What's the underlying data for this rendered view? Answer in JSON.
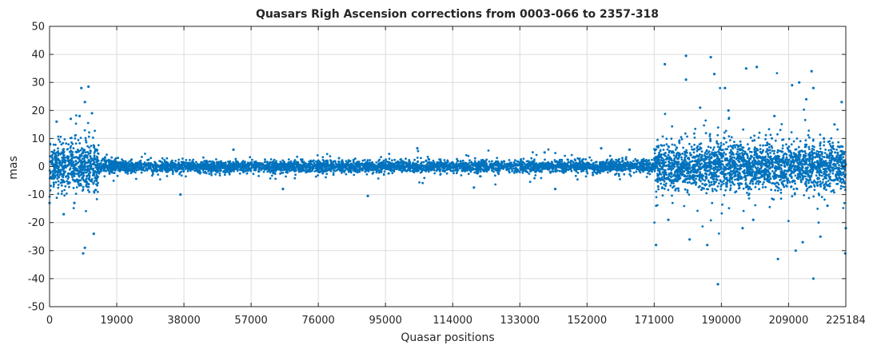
{
  "chart_data": {
    "type": "scatter",
    "title": "Quasars Righ Ascension corrections from 0003-066 to 2357-318",
    "xlabel": "Quasar positions",
    "ylabel": "mas",
    "xlim": [
      0,
      225184
    ],
    "ylim": [
      -50,
      50
    ],
    "grid": true,
    "legend": "none",
    "marker_color": "#0072BD",
    "x_ticks": [
      0,
      19000,
      38000,
      57000,
      76000,
      95000,
      114000,
      133000,
      152000,
      171000,
      190000,
      209000,
      225184
    ],
    "y_ticks": [
      50,
      40,
      30,
      20,
      10,
      0,
      -10,
      -20,
      -30,
      -40,
      -50
    ],
    "series": [
      {
        "density_segments": [
          {
            "x_range": [
              0,
              14000
            ],
            "y_spread": 4.0,
            "y_min": -31,
            "y_max": 29
          },
          {
            "x_range": [
              14000,
              171000
            ],
            "y_spread": 1.0,
            "y_min": -11,
            "y_max": 7
          },
          {
            "x_range": [
              171000,
              225184
            ],
            "y_spread": 4.0,
            "y_min": -42,
            "y_max": 40
          }
        ],
        "outliers": [
          [
            9000,
            28
          ],
          [
            11000,
            28.5
          ],
          [
            10000,
            23
          ],
          [
            8500,
            18
          ],
          [
            12000,
            19
          ],
          [
            2000,
            16
          ],
          [
            6000,
            17
          ],
          [
            10000,
            -29
          ],
          [
            9500,
            -31
          ],
          [
            12500,
            -24
          ],
          [
            0,
            -13
          ],
          [
            4000,
            -17
          ],
          [
            7000,
            -13
          ],
          [
            37000,
            -10
          ],
          [
            52000,
            6
          ],
          [
            66000,
            -8
          ],
          [
            90000,
            -10.5
          ],
          [
            104000,
            6.5
          ],
          [
            120000,
            -7.5
          ],
          [
            143000,
            -8
          ],
          [
            156000,
            6.5
          ],
          [
            164000,
            6
          ],
          [
            171500,
            -28
          ],
          [
            140000,
            5
          ],
          [
            174000,
            36.5
          ],
          [
            180000,
            39.5
          ],
          [
            187000,
            39
          ],
          [
            188000,
            33
          ],
          [
            180000,
            31
          ],
          [
            184000,
            21
          ],
          [
            189000,
            -42
          ],
          [
            191000,
            28
          ],
          [
            197000,
            35
          ],
          [
            200000,
            35.5
          ],
          [
            210000,
            29
          ],
          [
            212000,
            30
          ],
          [
            214000,
            24
          ],
          [
            215500,
            34
          ],
          [
            216000,
            28
          ],
          [
            224000,
            23
          ],
          [
            225000,
            -31
          ],
          [
            225184,
            -22
          ],
          [
            213000,
            -27
          ],
          [
            216000,
            -40
          ],
          [
            218000,
            -25
          ],
          [
            219000,
            10
          ],
          [
            211000,
            -30
          ],
          [
            206000,
            -33
          ],
          [
            199000,
            -19
          ],
          [
            186000,
            -28
          ],
          [
            181000,
            -26
          ],
          [
            175000,
            -19
          ],
          [
            192000,
            20
          ],
          [
            205000,
            18
          ],
          [
            222000,
            15
          ],
          [
            196000,
            -22
          ],
          [
            220000,
            -14
          ]
        ]
      }
    ]
  }
}
